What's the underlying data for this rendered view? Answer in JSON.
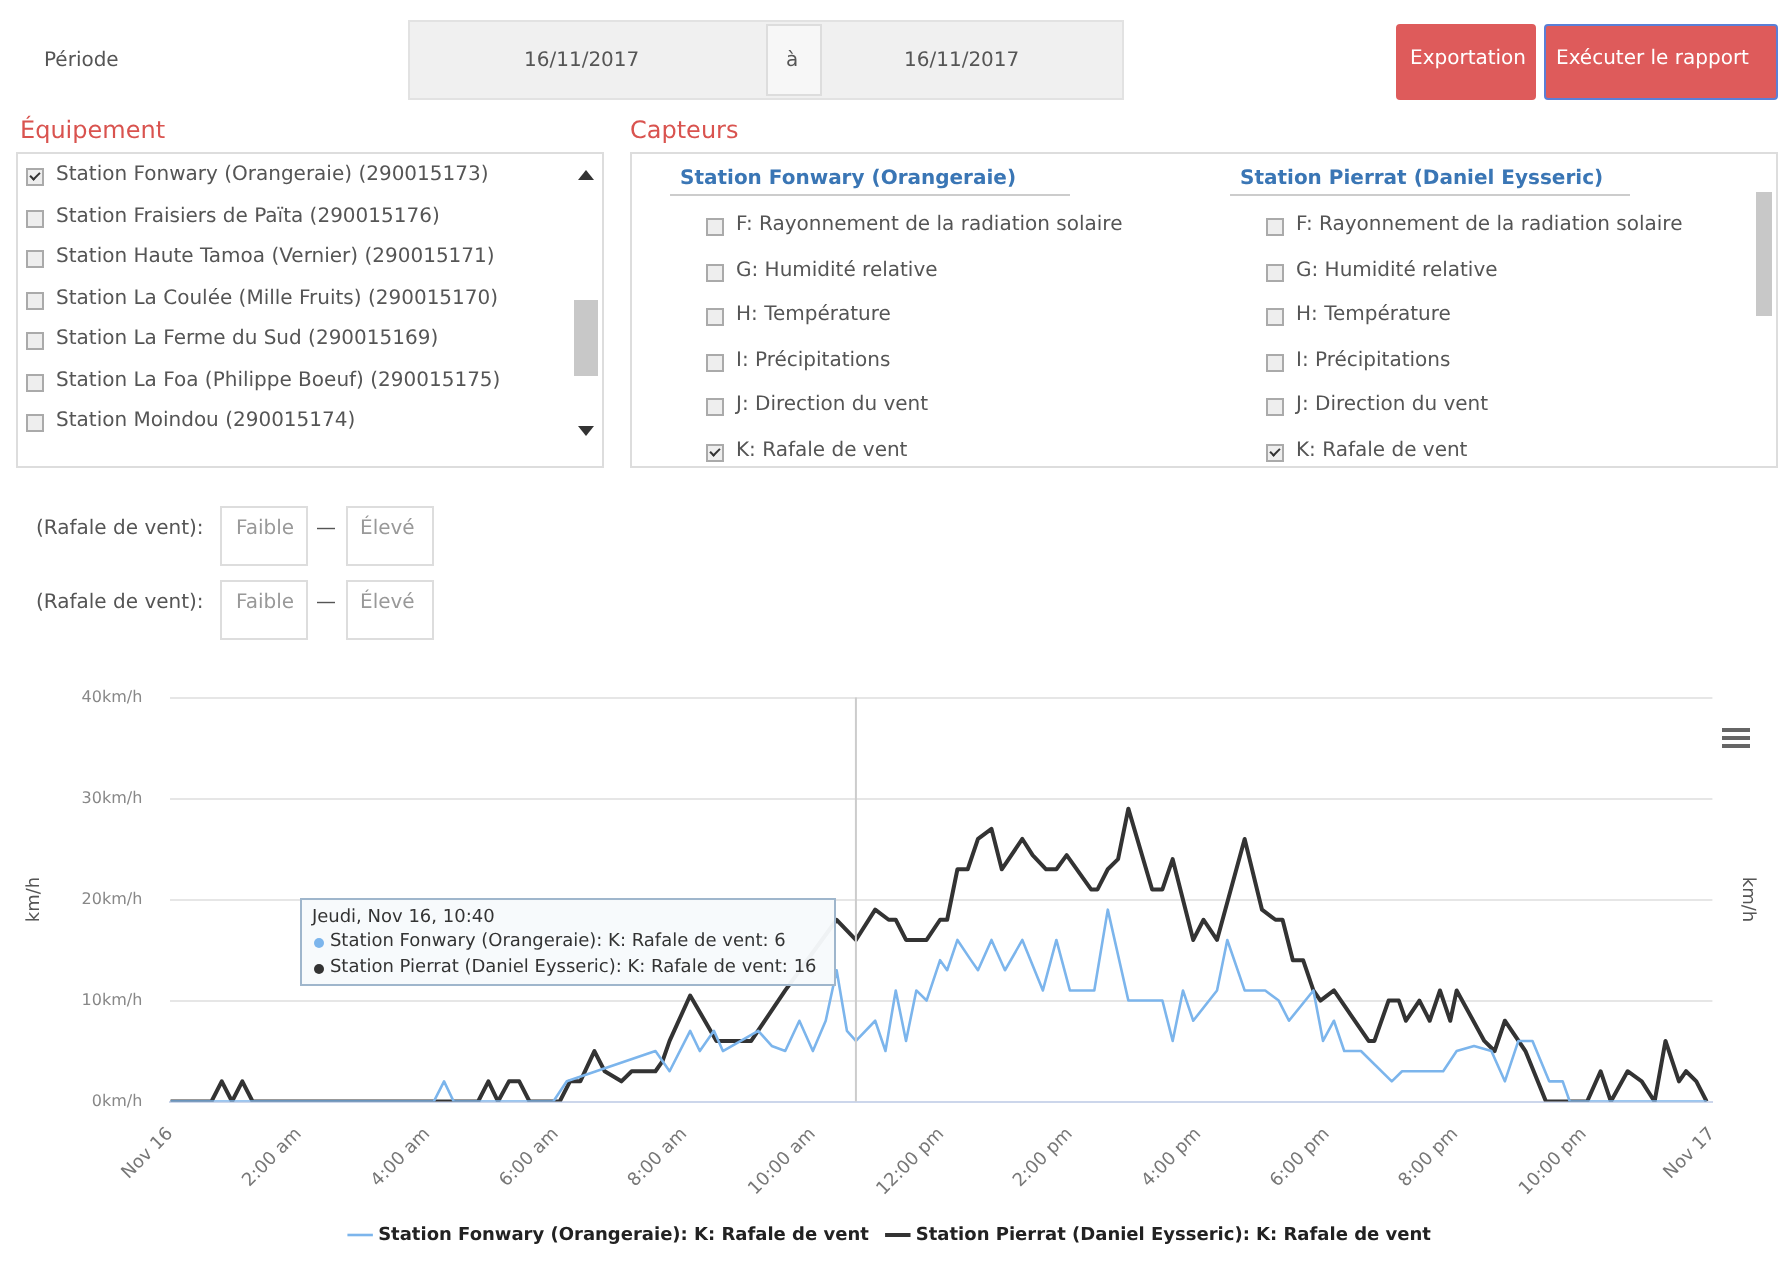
{
  "chart_data": {
    "type": "line",
    "xlabel": null,
    "ylabel": "km/h",
    "y2label": "km/h",
    "xlim": [
      0,
      24
    ],
    "xticks": [
      {
        "value": 0,
        "label": "Nov 16"
      },
      {
        "value": 2,
        "label": "2:00 am"
      },
      {
        "value": 4,
        "label": "4:00 am"
      },
      {
        "value": 6,
        "label": "6:00 am"
      },
      {
        "value": 8,
        "label": "8:00 am"
      },
      {
        "value": 10,
        "label": "10:00 am"
      },
      {
        "value": 12,
        "label": "12:00 pm"
      },
      {
        "value": 14,
        "label": "2:00 pm"
      },
      {
        "value": 16,
        "label": "4:00 pm"
      },
      {
        "value": 18,
        "label": "6:00 pm"
      },
      {
        "value": 20,
        "label": "8:00 pm"
      },
      {
        "value": 22,
        "label": "10:00 pm"
      },
      {
        "value": 24,
        "label": "Nov 17"
      }
    ],
    "ylim": [
      0,
      40
    ],
    "yticks": [
      {
        "value": 0,
        "label": "0km/h"
      },
      {
        "value": 10,
        "label": "10km/h"
      },
      {
        "value": 20,
        "label": "20km/h"
      },
      {
        "value": 30,
        "label": "30km/h"
      },
      {
        "value": 40,
        "label": "40km/h"
      }
    ],
    "grid": "y",
    "legend": "bottom",
    "marker": "none",
    "line_style": "solid",
    "ref_lines": [
      {
        "axis": "x",
        "value": 10.67,
        "label": null,
        "color": "#cccccc"
      }
    ],
    "series": [
      {
        "name": "Station Fonwary (Orangeraie): K: Rafale de vent",
        "color": "#7cb5ec",
        "x": [
          0,
          4.1,
          4.26,
          4.41,
          5.96,
          6.17,
          7.55,
          7.77,
          8.09,
          8.24,
          8.46,
          8.6,
          9.15,
          9.36,
          9.57,
          9.79,
          10,
          10.2,
          10.37,
          10.53,
          10.67,
          10.97,
          11.13,
          11.29,
          11.45,
          11.61,
          11.77,
          11.98,
          12.09,
          12.25,
          12.46,
          12.57,
          12.78,
          12.99,
          13.26,
          13.58,
          13.79,
          14,
          14.38,
          14.59,
          14.91,
          15.12,
          15.44,
          15.6,
          15.76,
          15.92,
          16.29,
          16.45,
          16.72,
          17.04,
          17.25,
          17.41,
          17.79,
          17.94,
          18.11,
          18.27,
          18.53,
          19.01,
          19.17,
          19.81,
          20.02,
          20.29,
          20.56,
          20.77,
          20.98,
          21.2,
          21.46,
          21.67,
          21.78,
          23.91
        ],
        "values": [
          0,
          0,
          2,
          0,
          0,
          2,
          5,
          3,
          7,
          5,
          7,
          5,
          7,
          5.5,
          5,
          8,
          5,
          8,
          13,
          7,
          6,
          8,
          5,
          11,
          6,
          11,
          10,
          14,
          13,
          16,
          14,
          13,
          16,
          13,
          16,
          11,
          16,
          11,
          11,
          19,
          10,
          10,
          10,
          6,
          11,
          8,
          11,
          16,
          11,
          11,
          10,
          8,
          11,
          6,
          8,
          5,
          5,
          2,
          3,
          3,
          5,
          5.5,
          5,
          2,
          6,
          6,
          2,
          2,
          0,
          0
        ]
      },
      {
        "name": "Station Pierrat (Daniel Eysseric): K: Rafale de vent",
        "color": "#333333",
        "x": [
          0,
          0.64,
          0.8,
          0.96,
          1.12,
          1.28,
          4.79,
          4.95,
          5.1,
          5.27,
          5.43,
          5.59,
          6.06,
          6.22,
          6.38,
          6.6,
          6.76,
          7.02,
          7.18,
          7.55,
          7.66,
          7.77,
          8.09,
          8.5,
          9.04,
          9.57,
          10.37,
          10.67,
          10.97,
          11.18,
          11.29,
          11.45,
          11.77,
          11.98,
          12.09,
          12.25,
          12.41,
          12.57,
          12.78,
          12.94,
          13.26,
          13.42,
          13.63,
          13.79,
          13.95,
          14.33,
          14.43,
          14.59,
          14.75,
          14.91,
          15.28,
          15.44,
          15.6,
          15.92,
          16.08,
          16.29,
          16.72,
          16.99,
          17.2,
          17.31,
          17.47,
          17.63,
          17.79,
          17.9,
          18.11,
          18.65,
          18.74,
          18.96,
          19.12,
          19.23,
          19.44,
          19.6,
          19.76,
          19.92,
          20.02,
          20.45,
          20.61,
          20.77,
          21.09,
          21.41,
          22.05,
          22.26,
          22.42,
          22.68,
          22.9,
          23.1,
          23.27,
          23.48,
          23.59,
          23.75,
          23.91
        ],
        "values": [
          0,
          0,
          2,
          0,
          2,
          0,
          0,
          2,
          0,
          2,
          2,
          0,
          0,
          2,
          2,
          5,
          3,
          2,
          3,
          3,
          4,
          6,
          10.5,
          6,
          6,
          11,
          18,
          16,
          19,
          18,
          18,
          16,
          16,
          18,
          18,
          23,
          23,
          26,
          27,
          23,
          26,
          24.4,
          23,
          23,
          24.4,
          21,
          21,
          23,
          24,
          29,
          21,
          21,
          24,
          16,
          18,
          16,
          26,
          19,
          18,
          18,
          14,
          14,
          11,
          10,
          11,
          6,
          6,
          10,
          10,
          8,
          10,
          8,
          11,
          8,
          11,
          6,
          5,
          8,
          5,
          0,
          0,
          3,
          0,
          3,
          2,
          0,
          6,
          2,
          3,
          2,
          0
        ]
      }
    ],
    "annotations": [
      "Période",
      "16/11/2017",
      "à",
      "16/11/2017",
      "Exportation",
      "Exécuter le rapport",
      "Équipement",
      "Station Fonwary (Orangeraie) (290015173)",
      "Station Fraisiers de Païta (290015176)",
      "Station Haute Tamoa (Vernier) (290015171)",
      "Station La Coulée (Mille Fruits) (290015170)",
      "Station La Ferme du Sud (290015169)",
      "Station La Foa (Philippe Boeuf) (290015175)",
      "Station Moindou (290015174)",
      "Capteurs",
      "Station Fonwary (Orangeraie)",
      "F: Rayonnement de la radiation solaire",
      "G: Humidité relative",
      "H: Température",
      "I: Précipitations",
      "J: Direction du vent",
      "K: Rafale de vent",
      "Station Pierrat (Daniel Eysseric)",
      "F: Rayonnement de la radiation solaire",
      "G: Humidité relative",
      "H: Température",
      "I: Précipitations",
      "J: Direction du vent",
      "K: Rafale de vent",
      "(Rafale de vent):",
      "Faible",
      "—",
      "Élevé",
      "(Rafale de vent):",
      "Faible",
      "—",
      "Élevé",
      "Jeudi, Nov 16, 10:40",
      "Station Fonwary (Orangeraie): K: Rafale de vent: 6",
      "Station Pierrat (Daniel Eysseric): K: Rafale de vent: 16"
    ]
  }
}
